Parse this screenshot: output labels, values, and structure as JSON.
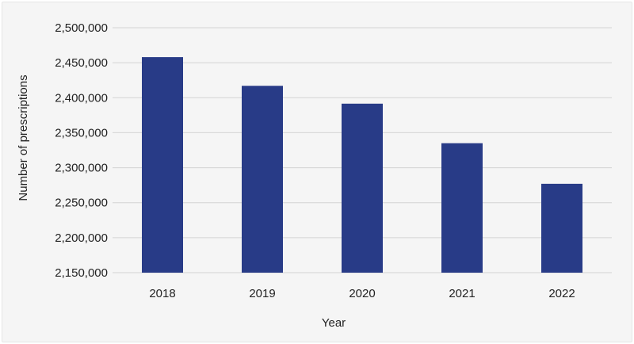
{
  "chart_data": {
    "type": "bar",
    "title": "",
    "xlabel": "Year",
    "ylabel": "Number of prescriptions",
    "categories": [
      "2018",
      "2019",
      "2020",
      "2021",
      "2022"
    ],
    "values": [
      2458000,
      2417000,
      2391500,
      2335000,
      2277000
    ],
    "ylim": [
      2150000,
      2500000
    ],
    "yticks": [
      2150000,
      2200000,
      2250000,
      2300000,
      2350000,
      2400000,
      2450000,
      2500000
    ],
    "ytick_labels": [
      "2,150,000",
      "2,200,000",
      "2,250,000",
      "2,300,000",
      "2,350,000",
      "2,400,000",
      "2,450,000",
      "2,500,000"
    ],
    "grid": true,
    "legend": "none",
    "colors": {
      "bar": "#283b87",
      "grid": "#d4d4d4",
      "background": "#f5f5f5"
    }
  }
}
